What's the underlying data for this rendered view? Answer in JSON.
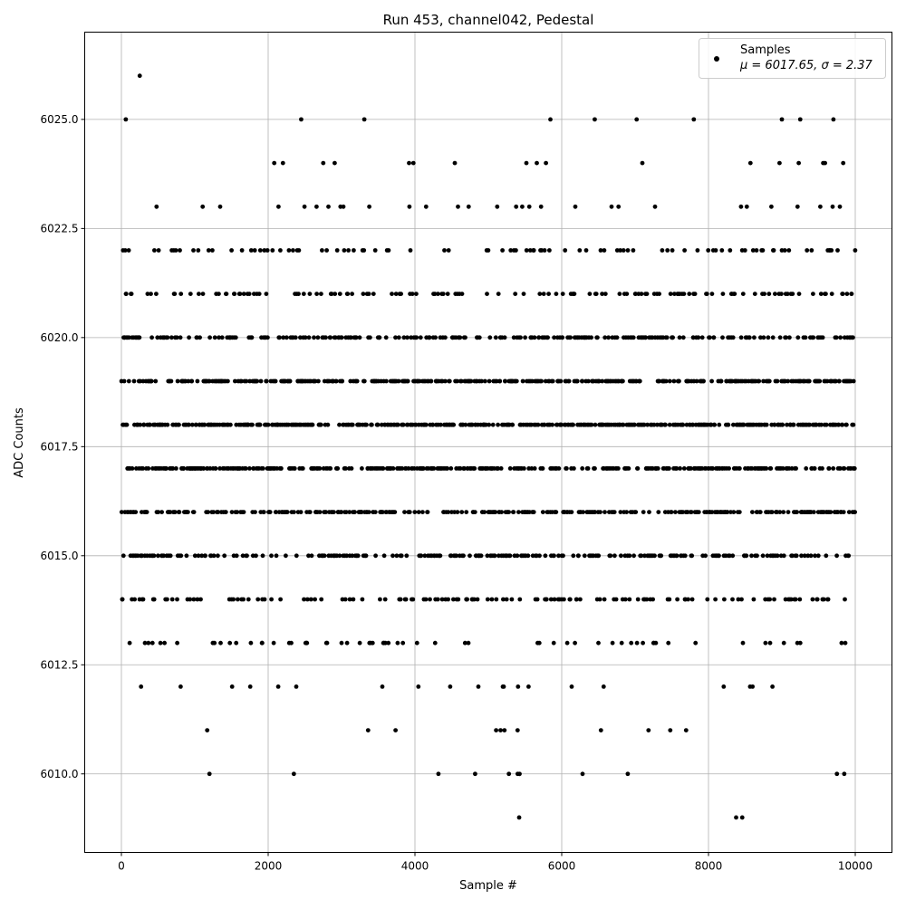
{
  "chart_data": {
    "type": "scatter",
    "title": "Run 453, channel042, Pedestal",
    "xlabel": "Sample #",
    "ylabel": "ADC Counts",
    "xlim": [
      -500,
      10500
    ],
    "ylim": [
      6008.2,
      6027.0
    ],
    "x_ticks": [
      0,
      2000,
      4000,
      6000,
      8000,
      10000
    ],
    "x_tick_labels": [
      "0",
      "2000",
      "4000",
      "6000",
      "8000",
      "10000"
    ],
    "y_ticks": [
      6010.0,
      6012.5,
      6015.0,
      6017.5,
      6020.0,
      6022.5,
      6025.0
    ],
    "y_tick_labels": [
      "6010.0",
      "6012.5",
      "6015.0",
      "6017.5",
      "6020.0",
      "6022.5",
      "6025.0"
    ],
    "grid": true,
    "legend": {
      "position": "top-right",
      "entries": [
        {
          "label": "Samples",
          "sublabel": "μ = 6017.65, σ = 2.37",
          "marker": "circle",
          "color": "#000000"
        }
      ]
    },
    "series": [
      {
        "name": "Samples",
        "color": "#000000",
        "marker": "circle",
        "count": 10000,
        "mean": 6017.65,
        "sigma": 2.37,
        "min": 6009,
        "max": 6026,
        "representative_points": {
          "x": [
            250,
            60,
            2450,
            3310,
            6450,
            7800,
            9000,
            9250,
            1200,
            2350,
            4320,
            4820,
            5280,
            5400,
            6900,
            9750,
            9850,
            5420,
            8460,
            3000,
            6500,
            8600
          ],
          "y": [
            6026,
            6025,
            6025,
            6025,
            6025,
            6025,
            6025,
            6025,
            6010,
            6010,
            6010,
            6010,
            6010,
            6010,
            6010,
            6010,
            6010,
            6009,
            6009,
            6013,
            6013,
            6012
          ]
        }
      }
    ]
  }
}
